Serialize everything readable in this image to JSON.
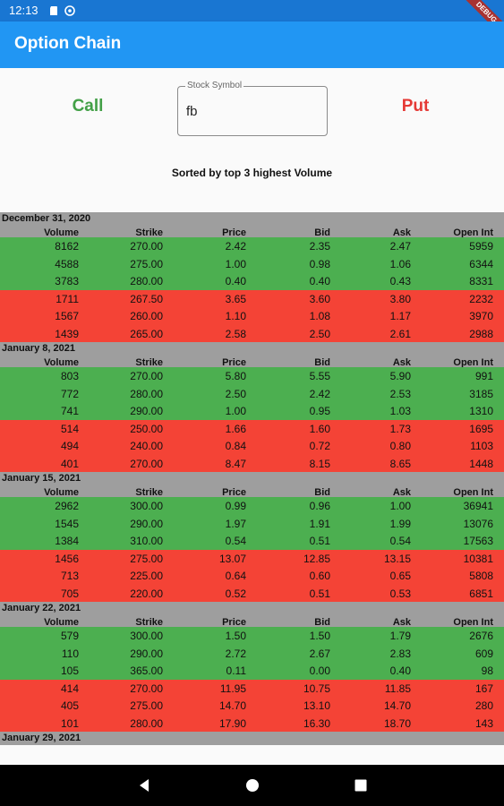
{
  "status": {
    "time": "12:13",
    "debug_label": "DEBUG"
  },
  "app": {
    "title": "Option Chain"
  },
  "controls": {
    "call_label": "Call",
    "put_label": "Put",
    "symbol_label": "Stock Symbol",
    "symbol_value": "fb",
    "sort_note": "Sorted by top 3 highest Volume"
  },
  "columns": [
    "Volume",
    "Strike",
    "Price",
    "Bid",
    "Ask",
    "Open Int"
  ],
  "colors": {
    "call": "#4caf50",
    "put": "#f44336",
    "header": "#9e9e9e",
    "app_bar": "#2196f3"
  },
  "groups": [
    {
      "date": "December 31, 2020",
      "calls": [
        [
          "8162",
          "270.00",
          "2.42",
          "2.35",
          "2.47",
          "5959"
        ],
        [
          "4588",
          "275.00",
          "1.00",
          "0.98",
          "1.06",
          "6344"
        ],
        [
          "3783",
          "280.00",
          "0.40",
          "0.40",
          "0.43",
          "8331"
        ]
      ],
      "puts": [
        [
          "1711",
          "267.50",
          "3.65",
          "3.60",
          "3.80",
          "2232"
        ],
        [
          "1567",
          "260.00",
          "1.10",
          "1.08",
          "1.17",
          "3970"
        ],
        [
          "1439",
          "265.00",
          "2.58",
          "2.50",
          "2.61",
          "2988"
        ]
      ]
    },
    {
      "date": "January 8, 2021",
      "calls": [
        [
          "803",
          "270.00",
          "5.80",
          "5.55",
          "5.90",
          "991"
        ],
        [
          "772",
          "280.00",
          "2.50",
          "2.42",
          "2.53",
          "3185"
        ],
        [
          "741",
          "290.00",
          "1.00",
          "0.95",
          "1.03",
          "1310"
        ]
      ],
      "puts": [
        [
          "514",
          "250.00",
          "1.66",
          "1.60",
          "1.73",
          "1695"
        ],
        [
          "494",
          "240.00",
          "0.84",
          "0.72",
          "0.80",
          "1103"
        ],
        [
          "401",
          "270.00",
          "8.47",
          "8.15",
          "8.65",
          "1448"
        ]
      ]
    },
    {
      "date": "January 15, 2021",
      "calls": [
        [
          "2962",
          "300.00",
          "0.99",
          "0.96",
          "1.00",
          "36941"
        ],
        [
          "1545",
          "290.00",
          "1.97",
          "1.91",
          "1.99",
          "13076"
        ],
        [
          "1384",
          "310.00",
          "0.54",
          "0.51",
          "0.54",
          "17563"
        ]
      ],
      "puts": [
        [
          "1456",
          "275.00",
          "13.07",
          "12.85",
          "13.15",
          "10381"
        ],
        [
          "713",
          "225.00",
          "0.64",
          "0.60",
          "0.65",
          "5808"
        ],
        [
          "705",
          "220.00",
          "0.52",
          "0.51",
          "0.53",
          "6851"
        ]
      ]
    },
    {
      "date": "January 22, 2021",
      "calls": [
        [
          "579",
          "300.00",
          "1.50",
          "1.50",
          "1.79",
          "2676"
        ],
        [
          "110",
          "290.00",
          "2.72",
          "2.67",
          "2.83",
          "609"
        ],
        [
          "105",
          "365.00",
          "0.11",
          "0.00",
          "0.40",
          "98"
        ]
      ],
      "puts": [
        [
          "414",
          "270.00",
          "11.95",
          "10.75",
          "11.85",
          "167"
        ],
        [
          "405",
          "275.00",
          "14.70",
          "13.10",
          "14.70",
          "280"
        ],
        [
          "101",
          "280.00",
          "17.90",
          "16.30",
          "18.70",
          "143"
        ]
      ]
    }
  ],
  "partial_group_date": "January 29, 2021"
}
